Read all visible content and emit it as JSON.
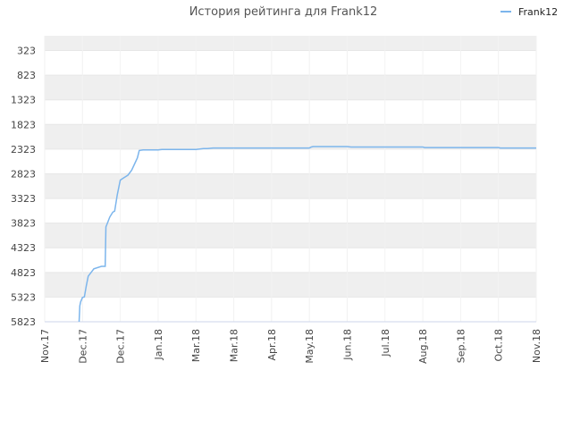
{
  "chart_data": {
    "type": "line",
    "title": "История рейтинга для Frank12",
    "legend": {
      "placement": "top-right",
      "entries": [
        "Frank12"
      ]
    },
    "y_axis": {
      "inverted": true,
      "range": [
        23,
        5823
      ],
      "ticks": [
        323,
        823,
        1323,
        1823,
        2323,
        2823,
        3323,
        3823,
        4323,
        4823,
        5323,
        5823
      ]
    },
    "x_axis": {
      "ticks": [
        "Nov.17",
        "Dec.17",
        "Dec.17",
        "Jan.18",
        "Mar.18",
        "Mar.18",
        "Apr.18",
        "May.18",
        "Jun.18",
        "Jul.18",
        "Aug.18",
        "Sep.18",
        "Oct.18",
        "Nov.18"
      ]
    },
    "grid": true,
    "series": [
      {
        "name": "Frank12",
        "color": "#7cb5ec",
        "points": [
          [
            0.91,
            5823
          ],
          [
            0.93,
            5500
          ],
          [
            0.95,
            5420
          ],
          [
            1.0,
            5330
          ],
          [
            1.05,
            5320
          ],
          [
            1.1,
            5100
          ],
          [
            1.15,
            4900
          ],
          [
            1.25,
            4800
          ],
          [
            1.3,
            4750
          ],
          [
            1.5,
            4700
          ],
          [
            1.55,
            4700
          ],
          [
            1.6,
            4700
          ],
          [
            1.62,
            3900
          ],
          [
            1.67,
            3800
          ],
          [
            1.72,
            3700
          ],
          [
            1.8,
            3600
          ],
          [
            1.85,
            3580
          ],
          [
            1.92,
            3250
          ],
          [
            2.0,
            2950
          ],
          [
            2.1,
            2900
          ],
          [
            2.2,
            2850
          ],
          [
            2.3,
            2750
          ],
          [
            2.45,
            2500
          ],
          [
            2.5,
            2350
          ],
          [
            2.6,
            2340
          ],
          [
            2.8,
            2340
          ],
          [
            3.0,
            2340
          ],
          [
            3.1,
            2330
          ],
          [
            3.2,
            2330
          ],
          [
            3.6,
            2330
          ],
          [
            4.0,
            2330
          ],
          [
            4.1,
            2320
          ],
          [
            4.2,
            2310
          ],
          [
            4.3,
            2310
          ],
          [
            4.45,
            2300
          ],
          [
            4.9,
            2300
          ],
          [
            5.5,
            2300
          ],
          [
            6.0,
            2300
          ],
          [
            7.0,
            2300
          ],
          [
            7.05,
            2280
          ],
          [
            7.1,
            2270
          ],
          [
            8.0,
            2270
          ],
          [
            8.1,
            2280
          ],
          [
            9.0,
            2280
          ],
          [
            10.0,
            2280
          ],
          [
            10.05,
            2290
          ],
          [
            11.0,
            2290
          ],
          [
            12.0,
            2290
          ],
          [
            12.05,
            2300
          ],
          [
            13.0,
            2300
          ]
        ]
      }
    ]
  }
}
